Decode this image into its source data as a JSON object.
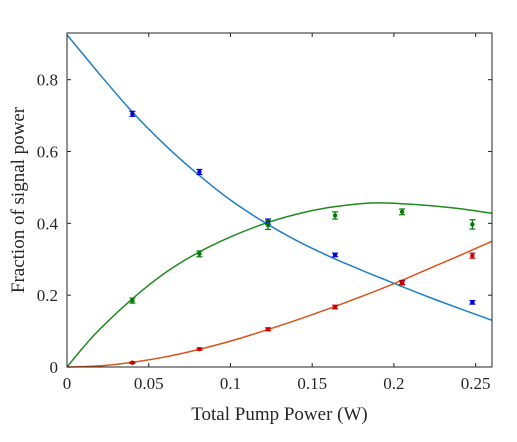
{
  "chart_data": {
    "type": "scatter",
    "title": "",
    "xlabel": "Total Pump Power (W)",
    "ylabel": "Fraction of signal power",
    "xlim": [
      0,
      0.26
    ],
    "ylim": [
      0,
      0.93
    ],
    "xticks": [
      0,
      0.05,
      0.1,
      0.15,
      0.2,
      0.25
    ],
    "xtick_labels": [
      "0",
      "0.05",
      "0.1",
      "0.15",
      "0.2",
      "0.25"
    ],
    "yticks": [
      0,
      0.2,
      0.4,
      0.6,
      0.8
    ],
    "ytick_labels": [
      "0",
      "0.2",
      "0.4",
      "0.6",
      "0.8"
    ],
    "grid": false,
    "legend": "none",
    "series": [
      {
        "color": "#0000d8",
        "points": [
          {
            "x": 0.04,
            "y": 0.705,
            "err": 0.007
          },
          {
            "x": 0.081,
            "y": 0.543,
            "err": 0.007
          },
          {
            "x": 0.123,
            "y": 0.405,
            "err": 0.007
          },
          {
            "x": 0.164,
            "y": 0.312,
            "err": 0.005
          },
          {
            "x": 0.205,
            "y": 0.235,
            "err": 0.006
          },
          {
            "x": 0.248,
            "y": 0.18,
            "err": 0.005
          }
        ]
      },
      {
        "color": "#007a00",
        "points": [
          {
            "x": 0.04,
            "y": 0.185,
            "err": 0.007
          },
          {
            "x": 0.081,
            "y": 0.315,
            "err": 0.008
          },
          {
            "x": 0.123,
            "y": 0.395,
            "err": 0.012
          },
          {
            "x": 0.164,
            "y": 0.422,
            "err": 0.01
          },
          {
            "x": 0.205,
            "y": 0.432,
            "err": 0.008
          },
          {
            "x": 0.248,
            "y": 0.397,
            "err": 0.013
          }
        ]
      },
      {
        "color": "#cc0000",
        "points": [
          {
            "x": 0.04,
            "y": 0.012,
            "err": 0.002
          },
          {
            "x": 0.081,
            "y": 0.05,
            "err": 0.003
          },
          {
            "x": 0.123,
            "y": 0.105,
            "err": 0.004
          },
          {
            "x": 0.164,
            "y": 0.167,
            "err": 0.005
          },
          {
            "x": 0.205,
            "y": 0.235,
            "err": 0.005
          },
          {
            "x": 0.248,
            "y": 0.31,
            "err": 0.007
          }
        ]
      }
    ],
    "fit_curves": [
      {
        "color": "#1f7fc4",
        "x": [
          0,
          0.02,
          0.04,
          0.06,
          0.08,
          0.1,
          0.12,
          0.14,
          0.16,
          0.18,
          0.2,
          0.22,
          0.24,
          0.26
        ],
        "y": [
          0.925,
          0.815,
          0.71,
          0.618,
          0.537,
          0.465,
          0.405,
          0.353,
          0.309,
          0.27,
          0.233,
          0.197,
          0.163,
          0.13
        ]
      },
      {
        "color": "#1f8a1f",
        "x": [
          0,
          0.01,
          0.02,
          0.04,
          0.06,
          0.08,
          0.1,
          0.12,
          0.14,
          0.16,
          0.18,
          0.19,
          0.2,
          0.22,
          0.24,
          0.26
        ],
        "y": [
          0.0,
          0.055,
          0.105,
          0.19,
          0.262,
          0.318,
          0.362,
          0.398,
          0.425,
          0.444,
          0.455,
          0.457,
          0.456,
          0.45,
          0.441,
          0.428
        ]
      },
      {
        "color": "#d95319",
        "x": [
          0,
          0.02,
          0.04,
          0.06,
          0.08,
          0.1,
          0.12,
          0.14,
          0.16,
          0.18,
          0.2,
          0.22,
          0.24,
          0.26
        ],
        "y": [
          0.0,
          0.003,
          0.013,
          0.028,
          0.048,
          0.072,
          0.1,
          0.13,
          0.162,
          0.196,
          0.232,
          0.271,
          0.31,
          0.35
        ]
      }
    ]
  }
}
